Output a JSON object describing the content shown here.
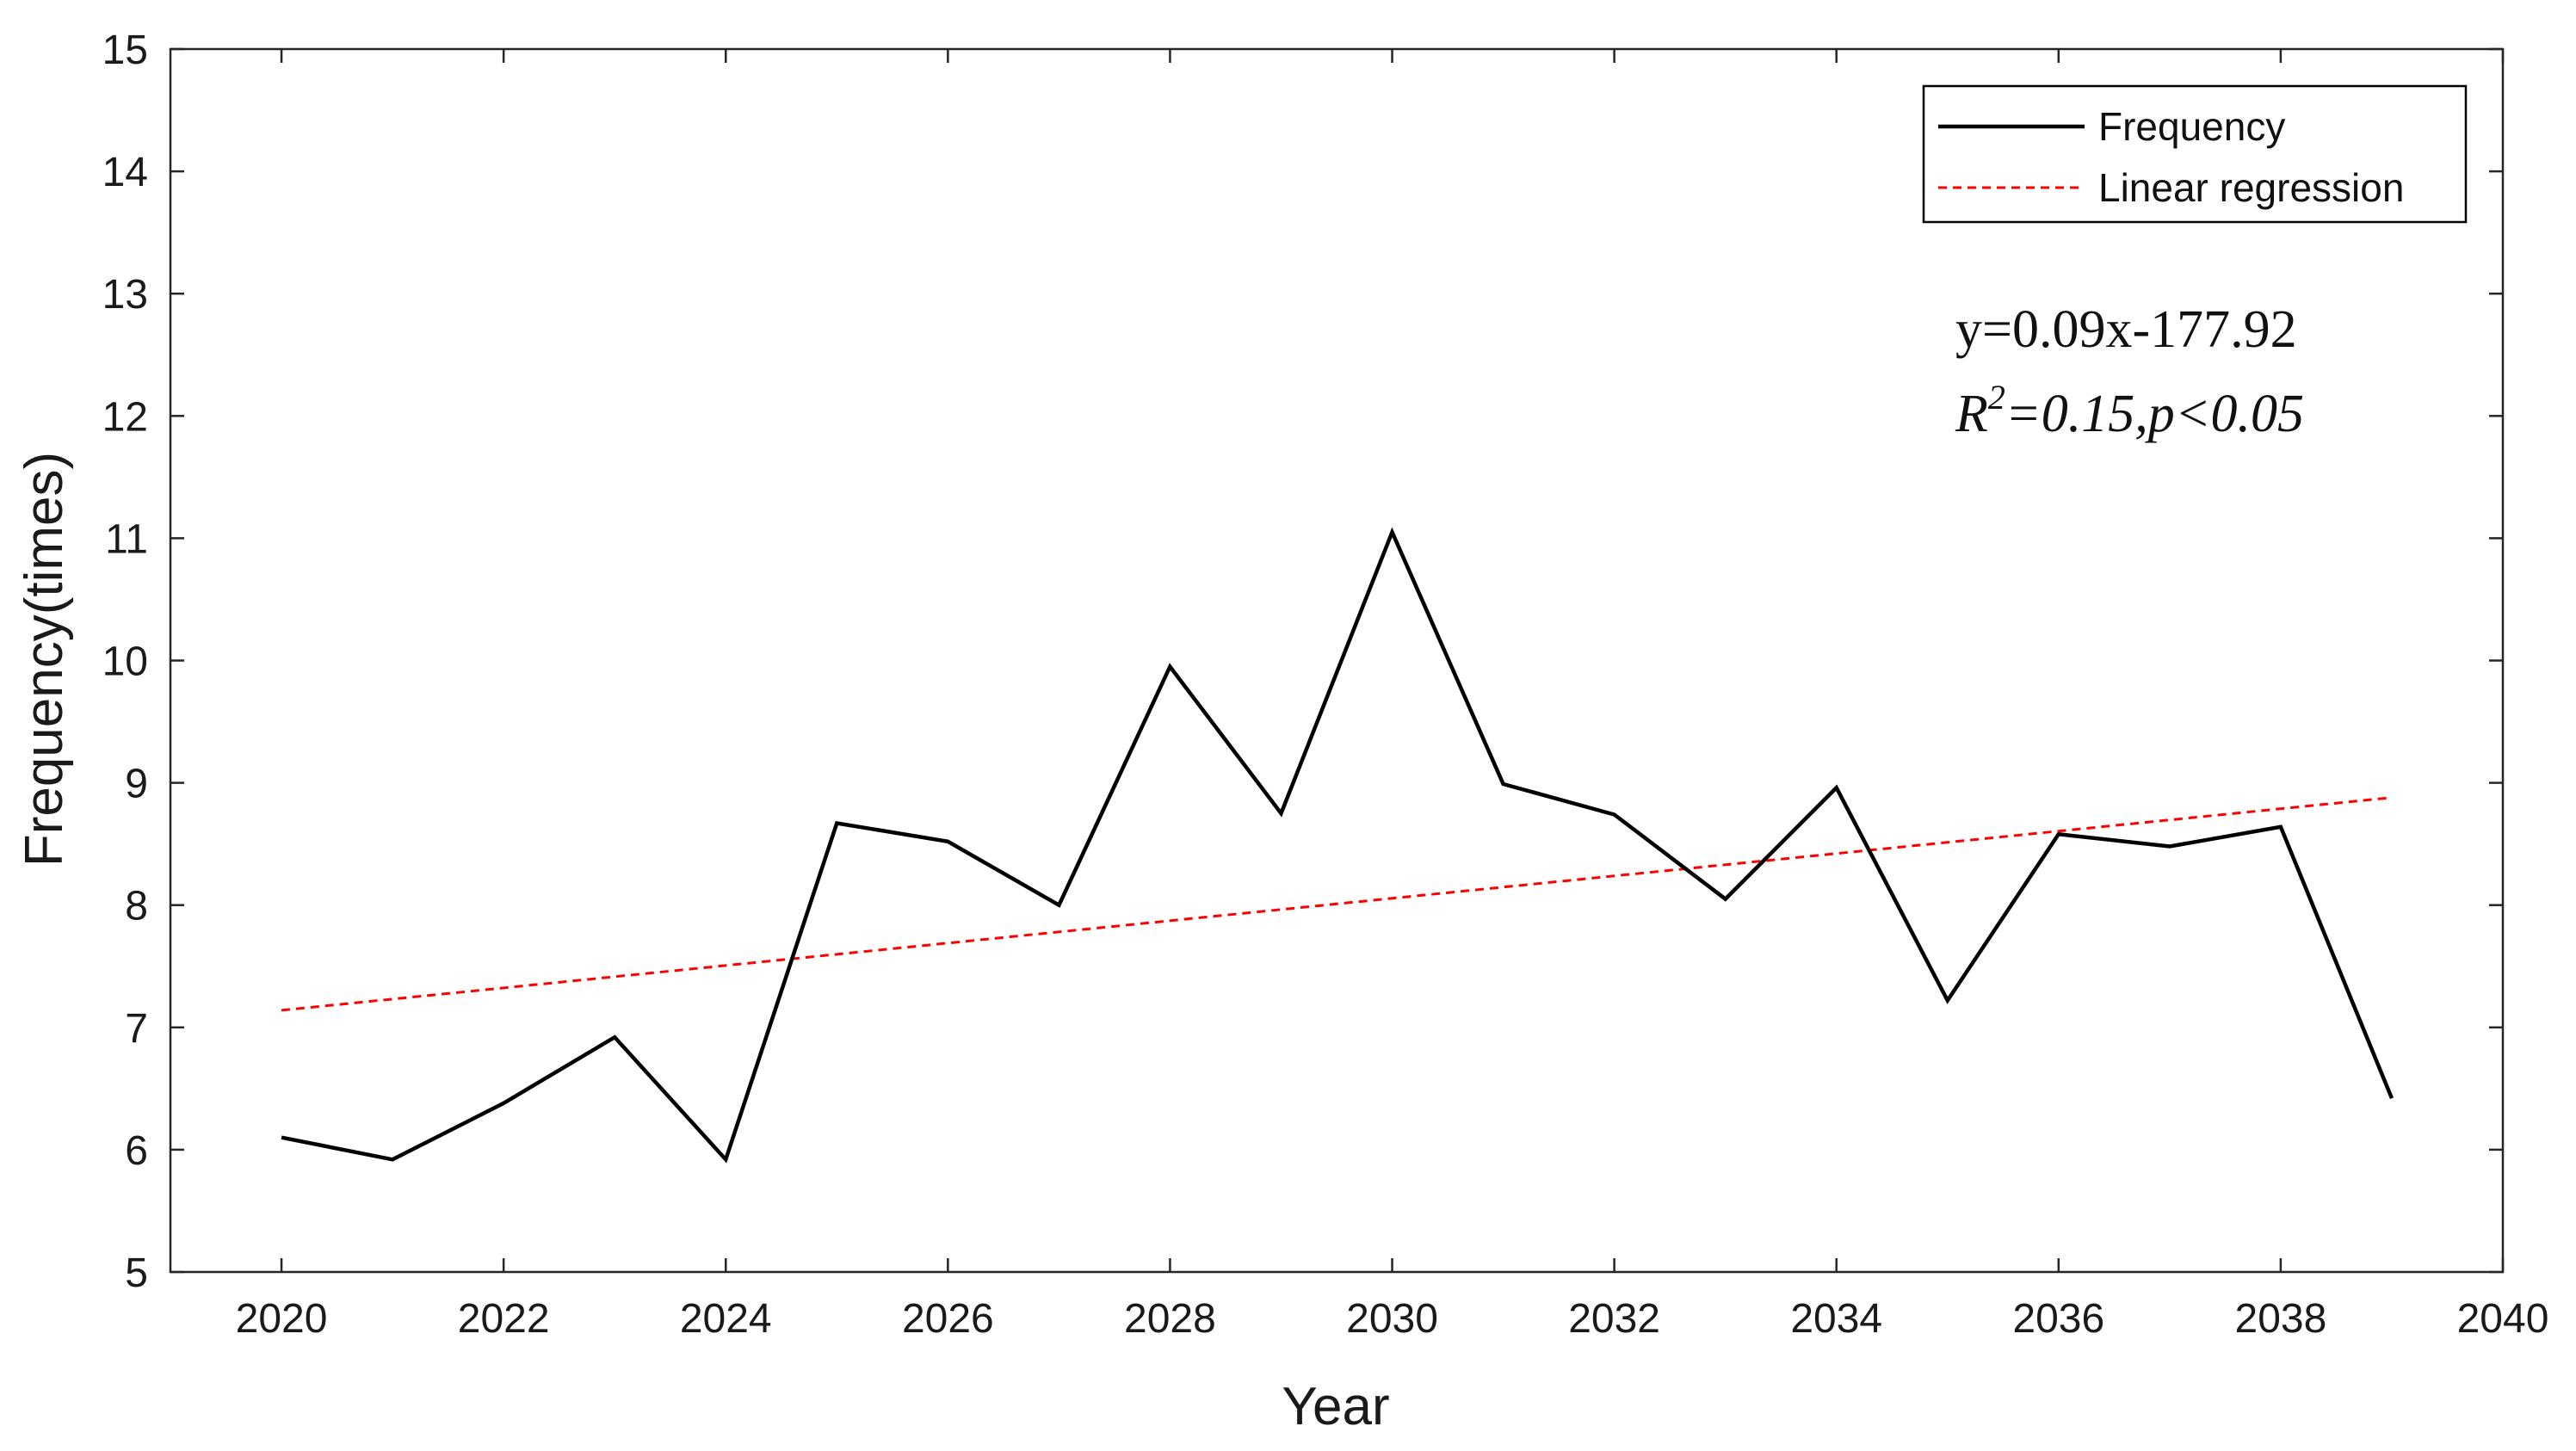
{
  "chart_data": {
    "type": "line",
    "title": "",
    "xlabel": "Year",
    "ylabel": "Frequency(times)",
    "xlim": [
      2019,
      2040
    ],
    "ylim": [
      5,
      15
    ],
    "xticks": [
      2020,
      2022,
      2024,
      2026,
      2028,
      2030,
      2032,
      2034,
      2036,
      2038,
      2040
    ],
    "yticks": [
      5,
      6,
      7,
      8,
      9,
      10,
      11,
      12,
      13,
      14,
      15
    ],
    "grid": false,
    "legend_position": "top-right",
    "series": [
      {
        "name": "Frequency",
        "color": "#000000",
        "style": "solid",
        "x": [
          2020,
          2021,
          2022,
          2023,
          2024,
          2025,
          2026,
          2027,
          2028,
          2029,
          2030,
          2031,
          2032,
          2033,
          2034,
          2035,
          2036,
          2037,
          2038,
          2039
        ],
        "y": [
          6.1,
          5.92,
          6.38,
          6.92,
          5.92,
          8.67,
          8.52,
          8.0,
          9.95,
          8.75,
          11.05,
          8.99,
          8.74,
          8.05,
          8.96,
          7.22,
          8.58,
          8.48,
          8.64,
          6.42
        ]
      },
      {
        "name": "Linear regression",
        "color": "#ff0000",
        "style": "dashed",
        "x": [
          2020,
          2039
        ],
        "y": [
          7.14,
          8.88
        ]
      }
    ],
    "annotations": {
      "equation": "y=0.09x-177.92",
      "r2_prefix": "R",
      "r2_superscript": "2",
      "r2_rest": "=0.15,p<0.05"
    }
  }
}
